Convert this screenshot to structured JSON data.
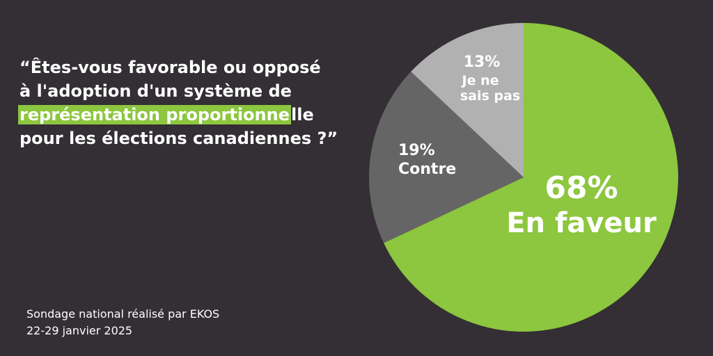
{
  "question": {
    "line1": "“Êtes-vous favorable ou opposé",
    "line2": "à l'adoption d'un système de",
    "line3_highlight": "représentation proportionne",
    "line3_rest": "lle",
    "line4": "pour les élections canadiennes ?”"
  },
  "source": {
    "line1": "Sondage national réalisé par EKOS",
    "line2": "22-29 janvier 2025"
  },
  "colors": {
    "background": "#332f34",
    "highlight": "#8dc63f"
  },
  "chart_data": {
    "type": "pie",
    "title": "",
    "start_angle_deg": 0,
    "direction": "clockwise",
    "slices": [
      {
        "label": "En faveur",
        "value": 68,
        "value_text": "68%",
        "color": "#8dc63f"
      },
      {
        "label": "Contre",
        "value": 19,
        "value_text": "19%",
        "color": "#666566"
      },
      {
        "label": "Je ne sais pas",
        "label_lines": [
          "Je ne",
          "sais pas"
        ],
        "value": 13,
        "value_text": "13%",
        "color": "#b1b1b1"
      }
    ]
  }
}
